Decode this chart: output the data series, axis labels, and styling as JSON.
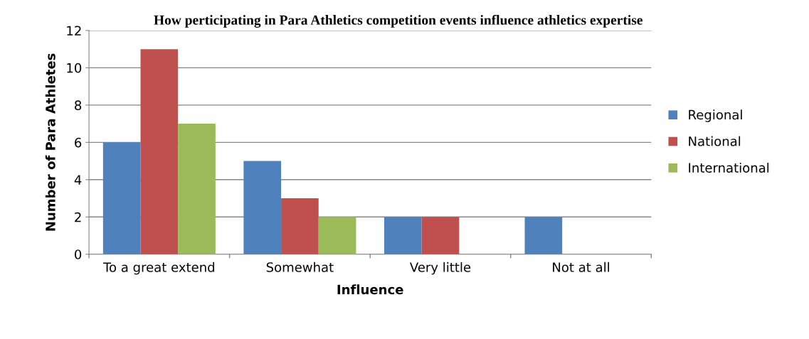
{
  "chart_data": {
    "type": "bar",
    "title": "How perticipating in Para Athletics competition events influence athletics expertise",
    "xlabel": "Influence",
    "ylabel": "Number of Para Athletes",
    "categories": [
      "To a great extend",
      "Somewhat",
      "Very little",
      "Not at all"
    ],
    "series": [
      {
        "name": "Regional",
        "color": "#4f81bd",
        "values": [
          6,
          5,
          2,
          2
        ]
      },
      {
        "name": "National",
        "color": "#c0504d",
        "values": [
          11,
          3,
          2,
          0
        ]
      },
      {
        "name": "International",
        "color": "#9bbb59",
        "values": [
          7,
          2,
          0,
          0
        ]
      }
    ],
    "ylim": [
      0,
      12
    ],
    "yticks": [
      0,
      2,
      4,
      6,
      8,
      10,
      12
    ],
    "grid": "y",
    "legend": "right"
  }
}
